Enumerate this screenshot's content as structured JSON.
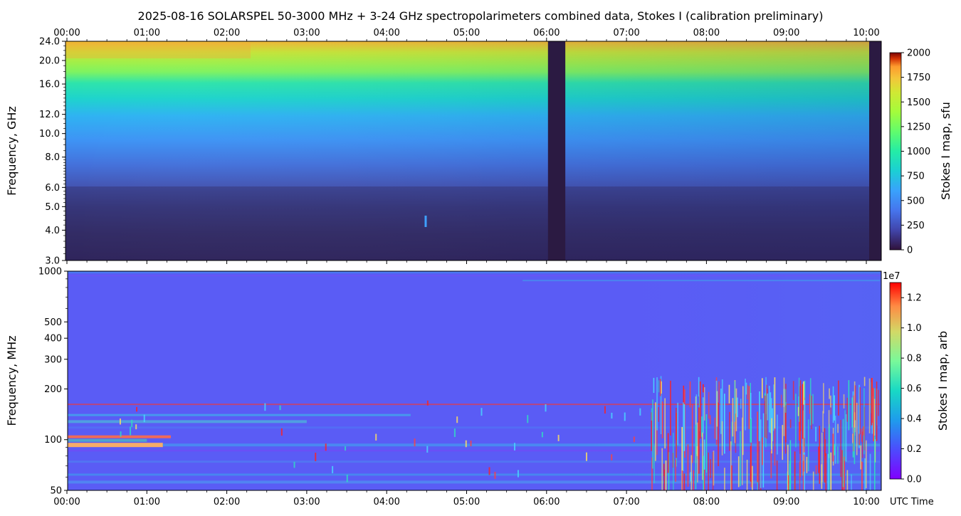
{
  "title": "2025-08-16  SOLARSPEL  50-3000 MHz  +  3-24 GHz  spectropolarimeters combined data,  Stokes I  (calibration preliminary)",
  "time_axis": {
    "label": "UTC Time",
    "ticks": [
      "00:00",
      "01:00",
      "02:00",
      "03:00",
      "04:00",
      "05:00",
      "06:00",
      "07:00",
      "08:00",
      "09:00",
      "10:00"
    ]
  },
  "chart_data": [
    {
      "type": "heatmap",
      "panel": "top",
      "ylabel": "Frequency, GHz",
      "y_scale": "log",
      "y_range": [
        3.0,
        24.0
      ],
      "y_ticks": [
        "3.0",
        "4.0",
        "5.0",
        "6.0",
        "8.0",
        "10.0",
        "12.0",
        "16.0",
        "20.0",
        "24.0"
      ],
      "x_range_hours": [
        0.0,
        10.17
      ],
      "colorbar": {
        "label": "Stokes I map, sfu",
        "range": [
          0,
          2000
        ],
        "ticks": [
          "0",
          "250",
          "500",
          "750",
          "1000",
          "1250",
          "1500",
          "1750",
          "2000"
        ],
        "colormap": "turbo"
      },
      "data_gaps_utc": [
        [
          "06:00",
          "06:13"
        ],
        [
          "10:09",
          "10:10"
        ]
      ],
      "features": [
        {
          "name": "short-burst",
          "time_utc": "04:29",
          "freq_ghz": 4.35
        }
      ]
    },
    {
      "type": "heatmap",
      "panel": "bottom",
      "ylabel": "Frequency, MHz",
      "y_scale": "log",
      "y_range": [
        50,
        1000
      ],
      "y_ticks": [
        "50",
        "100",
        "200",
        "300",
        "400",
        "500",
        "1000"
      ],
      "x_range_hours": [
        0.0,
        10.17
      ],
      "colorbar": {
        "label": "Stokes I map, arb",
        "multiplier": "1e7",
        "range": [
          0.0,
          1.3
        ],
        "ticks": [
          "0.0",
          "0.2",
          "0.4",
          "0.6",
          "0.8",
          "1.0",
          "1.2"
        ],
        "colormap": "rainbow"
      }
    }
  ]
}
